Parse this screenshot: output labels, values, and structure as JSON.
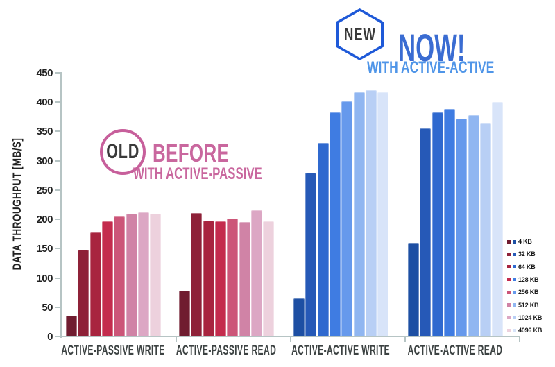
{
  "chart_data": {
    "type": "bar",
    "ylabel": "DATA THROUGHPUT [MB/S]",
    "ylim": [
      0,
      450
    ],
    "ytick_step": 50,
    "grid": false,
    "legend_position": "right",
    "groups": [
      "ACTIVE-PASSIVE WRITE",
      "ACTIVE-PASSIVE READ",
      "ACTIVE-ACTIVE WRITE",
      "ACTIVE-ACTIVE READ"
    ],
    "series": [
      {
        "name": "4 KB",
        "values": [
          36,
          78,
          65,
          160
        ]
      },
      {
        "name": "32 KB",
        "values": [
          148,
          211,
          280,
          355
        ]
      },
      {
        "name": "64 KB",
        "values": [
          178,
          198,
          330,
          382
        ]
      },
      {
        "name": "128 KB",
        "values": [
          196,
          197,
          382,
          388
        ]
      },
      {
        "name": "256 KB",
        "values": [
          205,
          201,
          402,
          372
        ]
      },
      {
        "name": "512 KB",
        "values": [
          210,
          195,
          417,
          378
        ]
      },
      {
        "name": "1024 KB",
        "values": [
          212,
          216,
          420,
          363
        ]
      },
      {
        "name": "4096 KB",
        "values": [
          210,
          196,
          417,
          400
        ]
      }
    ],
    "palette_passive": [
      "#701c30",
      "#8e2138",
      "#a8243f",
      "#c42b4d",
      "#cc5578",
      "#d083a6",
      "#dca7c4",
      "#edd1dd"
    ],
    "palette_active": [
      "#1d4fa3",
      "#2659b7",
      "#2f69cf",
      "#3f7ce2",
      "#6699ec",
      "#90b6f1",
      "#b8cff5",
      "#d8e4f9"
    ]
  },
  "annotations": {
    "old": {
      "badge": "OLD",
      "title": "BEFORE",
      "subtitle": "WITH ACTIVE-PASSIVE"
    },
    "new": {
      "badge": "NEW",
      "title": "NOW!",
      "subtitle": "WITH ACTIVE-ACTIVE"
    }
  },
  "colors": {
    "passive_accent": "#c9679e",
    "old_circle_border": "#c75f9b",
    "active_accent": "#3a6cd2",
    "active_subtitle": "#4f95e8",
    "new_hex_border": "#1e59d8",
    "axis": "#b6c4c4",
    "text_dark": "#3a3a3a"
  }
}
